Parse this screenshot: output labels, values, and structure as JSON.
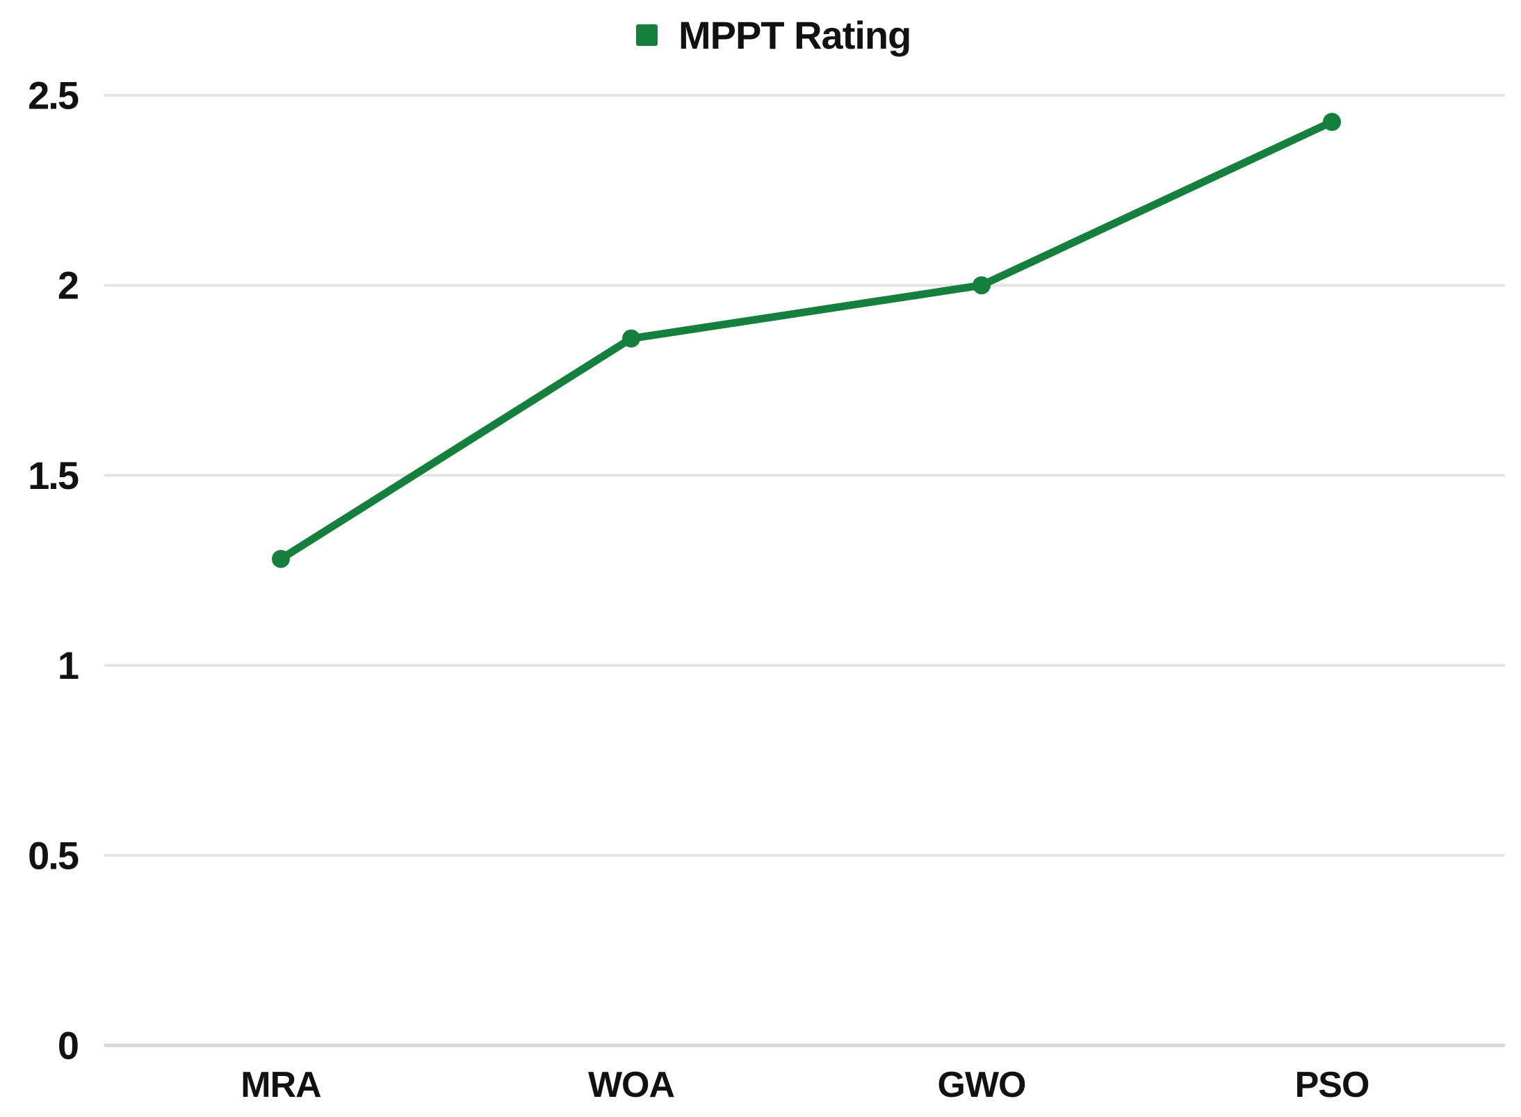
{
  "chart_data": {
    "type": "line",
    "title": "",
    "legend": {
      "label": "MPPT Rating",
      "marker": "square",
      "position": "top-center"
    },
    "categories": [
      "MRA",
      "WOA",
      "GWO",
      "PSO"
    ],
    "series": [
      {
        "name": "MPPT Rating",
        "color": "#15803d",
        "values": [
          1.28,
          1.86,
          2.0,
          2.43
        ]
      }
    ],
    "yticks": [
      {
        "value": 0,
        "label": "0"
      },
      {
        "value": 0.5,
        "label": "0.5"
      },
      {
        "value": 1,
        "label": "1"
      },
      {
        "value": 1.5,
        "label": "1.5"
      },
      {
        "value": 2,
        "label": "2"
      },
      {
        "value": 2.5,
        "label": "2.5"
      }
    ],
    "ylim": [
      0,
      2.5
    ],
    "xlabel": "",
    "ylabel": "",
    "grid": true,
    "colors": {
      "series_green": "#15803d",
      "gridline": "#e4e4e4",
      "zeroline": "#d7d7d7",
      "text": "#111111",
      "background": "#ffffff"
    }
  }
}
